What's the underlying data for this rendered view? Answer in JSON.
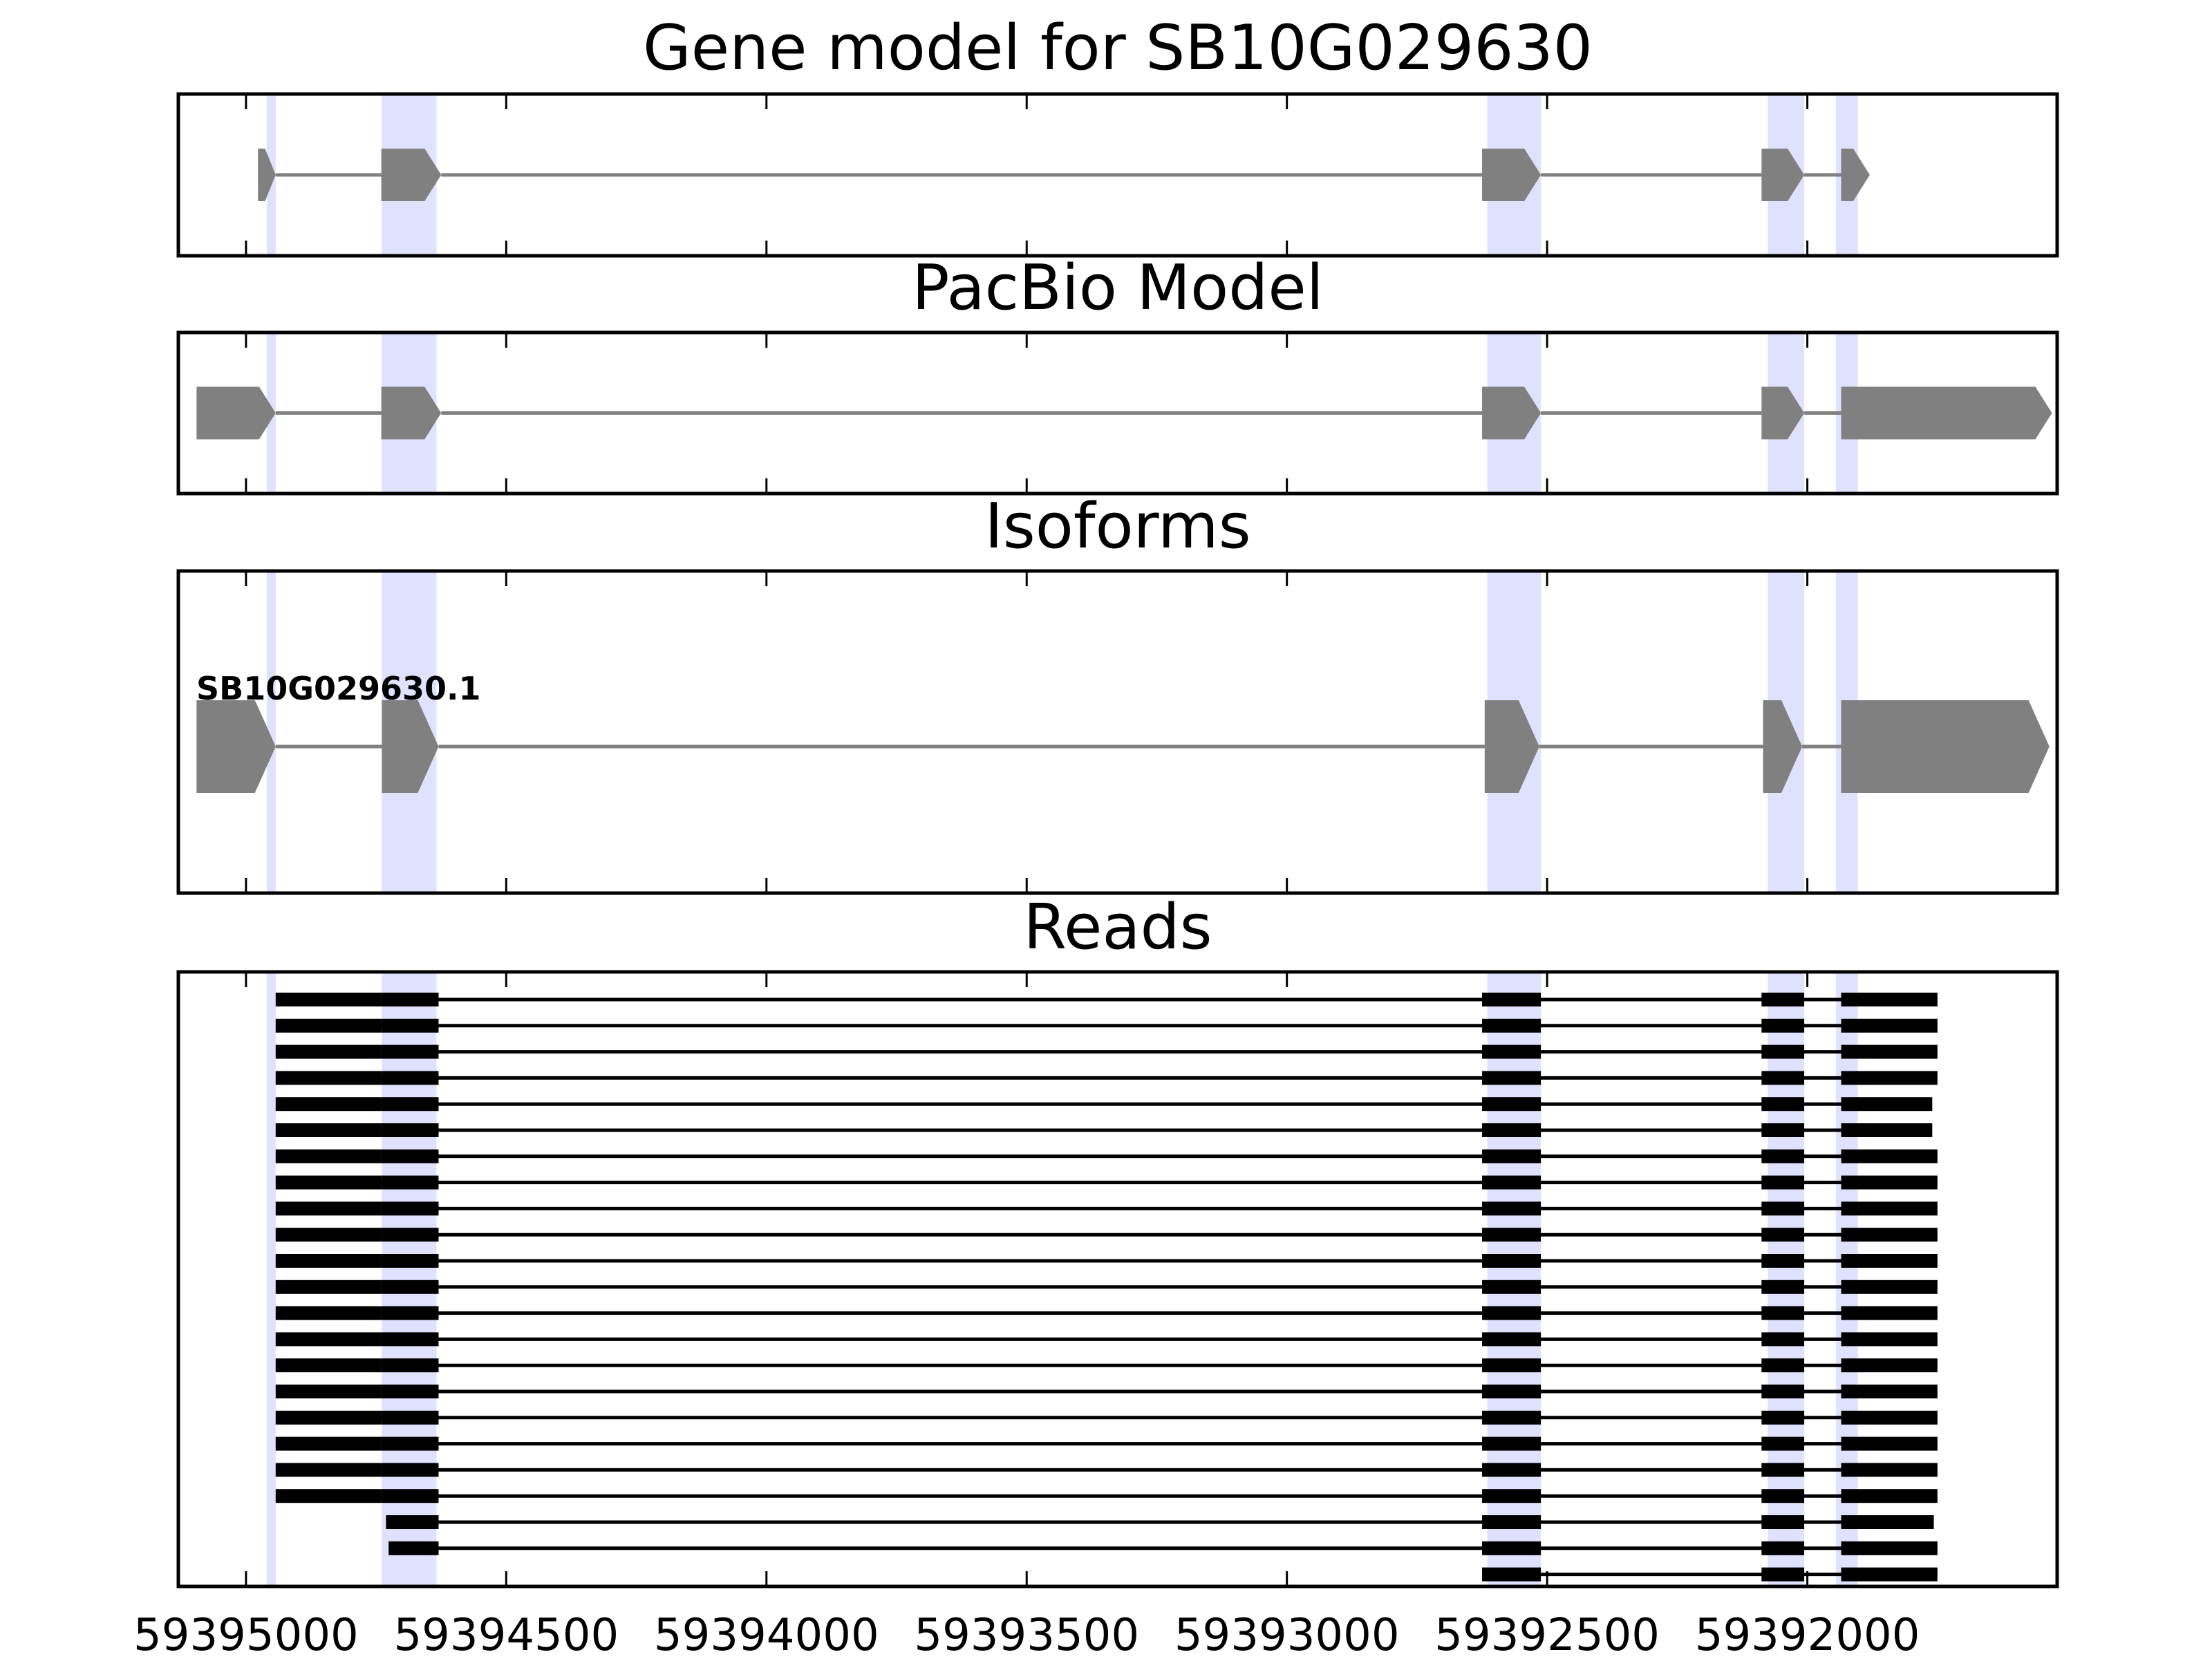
{
  "chart_data": {
    "type": "gene_model",
    "xaxis": {
      "reversed": true,
      "xlim": [
        59395130,
        59391520
      ],
      "ticks": [
        59395000,
        59394500,
        59394000,
        59393500,
        59393000,
        59392500,
        59392000
      ],
      "tick_labels": [
        "59395000",
        "59394500",
        "59394000",
        "59393500",
        "59393000",
        "59392500",
        "59392000"
      ]
    },
    "colors": {
      "exon": "#808080",
      "intron": "#808080",
      "highlight": "#e0e0ff",
      "read": "#000000"
    },
    "highlight_regions": [
      [
        59394960,
        59394943
      ],
      [
        59394739,
        59394634
      ],
      [
        59392615,
        59392512
      ],
      [
        59392076,
        59392006
      ],
      [
        59391945,
        59391903
      ]
    ],
    "panels": [
      {
        "title": "Gene model for SB10G029630",
        "type": "gene",
        "exons": [
          [
            59394977,
            59394943
          ],
          [
            59394740,
            59394625
          ],
          [
            59392625,
            59392512
          ],
          [
            59392088,
            59392006
          ],
          [
            59391935,
            59391880
          ]
        ]
      },
      {
        "title": "PacBio Model",
        "type": "gene",
        "exons": [
          [
            59395095,
            59394943
          ],
          [
            59394740,
            59394625
          ],
          [
            59392625,
            59392512
          ],
          [
            59392088,
            59392006
          ],
          [
            59391935,
            59391530
          ]
        ]
      },
      {
        "title": "Isoforms",
        "type": "gene",
        "isoforms": [
          {
            "label": "SB10G029630.1",
            "exons": [
              [
                59395095,
                59394943
              ],
              [
                59394739,
                59394630
              ],
              [
                59392620,
                59392515
              ],
              [
                59392085,
                59392010
              ],
              [
                59391935,
                59391535
              ]
            ]
          }
        ]
      },
      {
        "title": "Reads",
        "type": "reads",
        "reads": [
          {
            "start": 59395100,
            "end": 59391726
          },
          {
            "start": 59395060,
            "end": 59391727
          },
          {
            "start": 59395058,
            "end": 59391727
          },
          {
            "start": 59395058,
            "end": 59391664
          },
          {
            "start": 59395056,
            "end": 59391760
          },
          {
            "start": 59395056,
            "end": 59391760
          },
          {
            "start": 59395056,
            "end": 59391750
          },
          {
            "start": 59395056,
            "end": 59391740
          },
          {
            "start": 59395056,
            "end": 59391740
          },
          {
            "start": 59395056,
            "end": 59391727
          },
          {
            "start": 59395056,
            "end": 59391727
          },
          {
            "start": 59395056,
            "end": 59391727
          },
          {
            "start": 59395056,
            "end": 59391727
          },
          {
            "start": 59395056,
            "end": 59391720
          },
          {
            "start": 59395056,
            "end": 59391545
          },
          {
            "start": 59395054,
            "end": 59391750
          },
          {
            "start": 59395054,
            "end": 59391727
          },
          {
            "start": 59395054,
            "end": 59391727
          },
          {
            "start": 59395044,
            "end": 59391727
          },
          {
            "start": 59395044,
            "end": 59391720
          },
          {
            "start": 59394731,
            "end": 59391757
          },
          {
            "start": 59394726,
            "end": 59391727
          },
          {
            "start": 59392625,
            "end": 59391750
          }
        ],
        "read_exons_full": [
          [
            59394943,
            59394740
          ],
          [
            59394740,
            59394630
          ],
          [
            59392625,
            59392512
          ],
          [
            59392088,
            59392006
          ],
          [
            59391935,
            59391750
          ]
        ]
      }
    ]
  }
}
